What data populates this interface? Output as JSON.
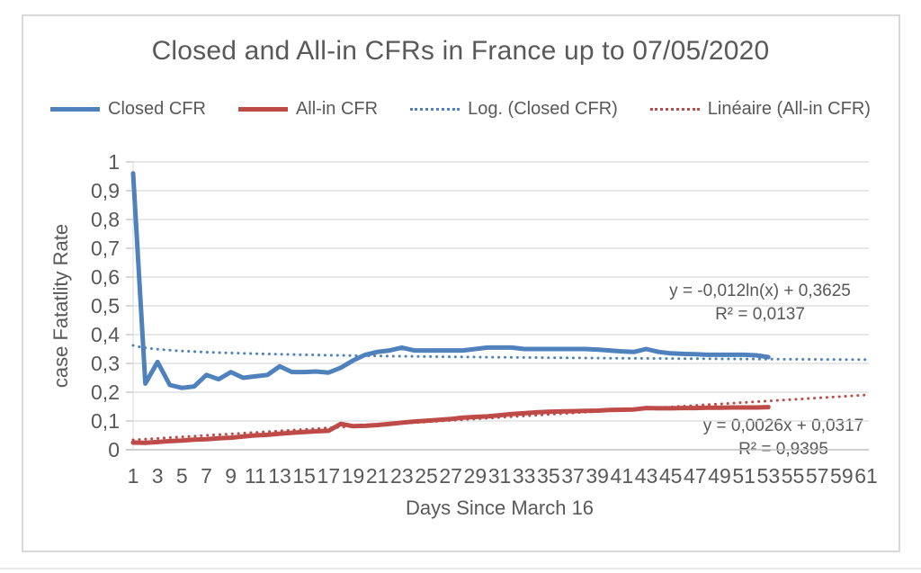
{
  "chart_data": {
    "type": "line",
    "title": "Closed and All-in CFRs in France up to 07/05/2020",
    "xlabel": "Days Since March 16",
    "ylabel": "case Fatatlity Rate",
    "xlim": [
      1,
      61
    ],
    "ylim": [
      0,
      1
    ],
    "grid": "horizontal",
    "legend_position": "top",
    "x_ticks": [
      1,
      3,
      5,
      7,
      9,
      11,
      13,
      15,
      17,
      19,
      21,
      23,
      25,
      27,
      29,
      31,
      33,
      35,
      37,
      39,
      41,
      43,
      45,
      47,
      49,
      51,
      53,
      55,
      57,
      59,
      61
    ],
    "y_tick_labels": [
      "0",
      "0,1",
      "0,2",
      "0,3",
      "0,4",
      "0,5",
      "0,6",
      "0,7",
      "0,8",
      "0,9",
      "1"
    ],
    "y_tick_values": [
      0,
      0.1,
      0.2,
      0.3,
      0.4,
      0.5,
      0.6,
      0.7,
      0.8,
      0.9,
      1
    ],
    "series": [
      {
        "name": "Closed CFR",
        "color": "#4F81BD",
        "style": "solid",
        "x_start": 1,
        "values": [
          0.96,
          0.23,
          0.305,
          0.225,
          0.215,
          0.22,
          0.26,
          0.245,
          0.27,
          0.25,
          0.255,
          0.26,
          0.29,
          0.27,
          0.27,
          0.272,
          0.268,
          0.285,
          0.31,
          0.33,
          0.34,
          0.345,
          0.355,
          0.345,
          0.345,
          0.345,
          0.345,
          0.345,
          0.35,
          0.355,
          0.355,
          0.355,
          0.35,
          0.35,
          0.35,
          0.35,
          0.35,
          0.35,
          0.348,
          0.345,
          0.342,
          0.34,
          0.35,
          0.34,
          0.335,
          0.333,
          0.332,
          0.33,
          0.33,
          0.33,
          0.33,
          0.328,
          0.322
        ]
      },
      {
        "name": "All-in CFR",
        "color": "#BE4B48",
        "style": "solid",
        "x_start": 1,
        "values": [
          0.025,
          0.024,
          0.027,
          0.03,
          0.032,
          0.035,
          0.037,
          0.04,
          0.042,
          0.046,
          0.05,
          0.052,
          0.056,
          0.059,
          0.062,
          0.064,
          0.066,
          0.09,
          0.082,
          0.083,
          0.086,
          0.09,
          0.094,
          0.098,
          0.101,
          0.104,
          0.107,
          0.112,
          0.114,
          0.116,
          0.12,
          0.124,
          0.127,
          0.13,
          0.132,
          0.133,
          0.134,
          0.135,
          0.136,
          0.138,
          0.139,
          0.14,
          0.145,
          0.144,
          0.144,
          0.145,
          0.145,
          0.146,
          0.146,
          0.147,
          0.147,
          0.147,
          0.148
        ]
      },
      {
        "name": "Log. (Closed CFR)",
        "color": "#4F81BD",
        "style": "dotted",
        "trend": "log",
        "a": -0.012,
        "b": 0.3625,
        "x_range": [
          1,
          61
        ]
      },
      {
        "name": "Linéaire (All-in CFR)",
        "color": "#BE4B48",
        "style": "dotted",
        "trend": "linear",
        "m": 0.0026,
        "c": 0.0317,
        "x_range": [
          1,
          61
        ]
      }
    ],
    "annotations": {
      "log_trend": {
        "equation": "y = -0,012ln(x) + 0,3625",
        "r_squared": "R² = 0,0137"
      },
      "linear_trend": {
        "equation": "y = 0,0026x + 0,0317",
        "r_squared": "R² = 0,9395"
      }
    }
  }
}
